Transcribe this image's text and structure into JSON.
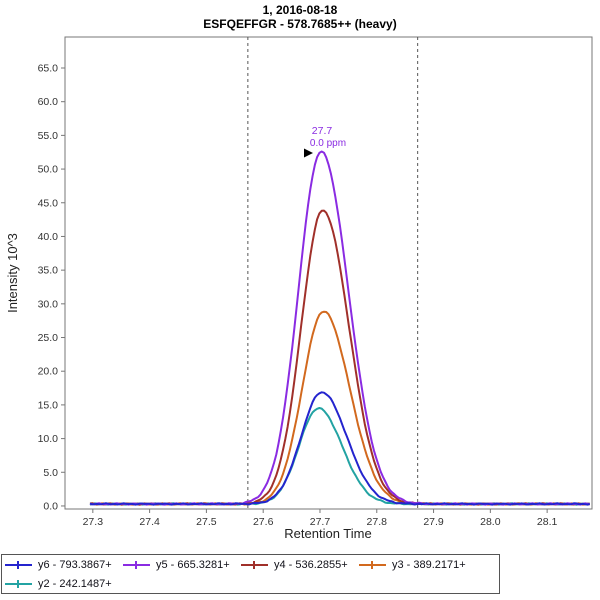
{
  "header": {
    "line1": "1, 2016-08-18",
    "line2": "ESFQEFFGR - 578.7685++ (heavy)"
  },
  "chart_data": {
    "type": "line",
    "title": "1, 2016-08-18",
    "subtitle": "ESFQEFFGR - 578.7685++ (heavy)",
    "xlabel": "Retention Time",
    "ylabel": "Intensity 10^3",
    "xlim": [
      27.251,
      28.179
    ],
    "ylim": [
      -0.45,
      69.6
    ],
    "xticks": [
      27.3,
      27.4,
      27.5,
      27.6,
      27.7,
      27.8,
      27.9,
      28.0,
      28.1
    ],
    "yticks": [
      0.0,
      5.0,
      10.0,
      15.0,
      20.0,
      25.0,
      30.0,
      35.0,
      40.0,
      45.0,
      50.0,
      55.0,
      60.0,
      65.0
    ],
    "x_range_data": [
      27.295,
      28.178
    ],
    "integration_boundaries": [
      27.573,
      27.872
    ],
    "annotation": {
      "rt_label": "27.7",
      "ppm_label": "0.0 ppm",
      "x": 27.702,
      "y": 52.6,
      "color": "#8A2BE2"
    },
    "baseline": 0.3,
    "grid": false,
    "legend_position": "bottom-left",
    "series": [
      {
        "name": "y6 - 793.3867+",
        "color": "#2424CE",
        "peak_rt": 27.703,
        "peak_height": 16.6,
        "sigma_left": 0.036,
        "sigma_right": 0.044
      },
      {
        "name": "y5 - 665.3281+",
        "color": "#8A2BE2",
        "peak_rt": 27.702,
        "peak_height": 52.3,
        "sigma_left": 0.04,
        "sigma_right": 0.048
      },
      {
        "name": "y4 - 536.2855+",
        "color": "#A0302A",
        "peak_rt": 27.705,
        "peak_height": 43.6,
        "sigma_left": 0.038,
        "sigma_right": 0.046
      },
      {
        "name": "y3 - 389.2171+",
        "color": "#D2691E",
        "peak_rt": 27.706,
        "peak_height": 28.6,
        "sigma_left": 0.037,
        "sigma_right": 0.046
      },
      {
        "name": "y2 - 242.1487+",
        "color": "#23A3A3",
        "peak_rt": 27.697,
        "peak_height": 14.2,
        "sigma_left": 0.034,
        "sigma_right": 0.042
      }
    ]
  }
}
